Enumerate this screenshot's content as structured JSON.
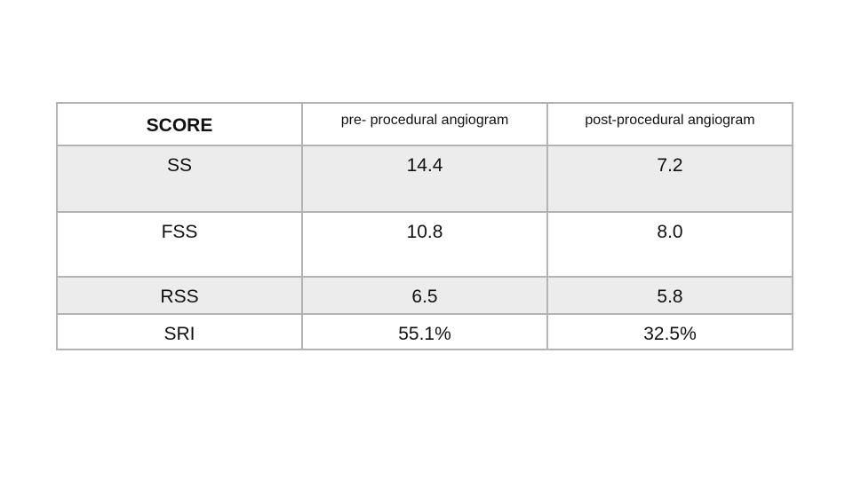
{
  "table": {
    "header": [
      "SCORE",
      "pre- procedural angiogram",
      "post-procedural angiogram"
    ],
    "rows": [
      [
        "SS",
        "14.4",
        "7.2"
      ],
      [
        "FSS",
        "10.8",
        "8.0"
      ],
      [
        "RSS",
        "6.5",
        "5.8"
      ],
      [
        "SRI",
        "55.1%",
        "32.5%"
      ]
    ]
  }
}
